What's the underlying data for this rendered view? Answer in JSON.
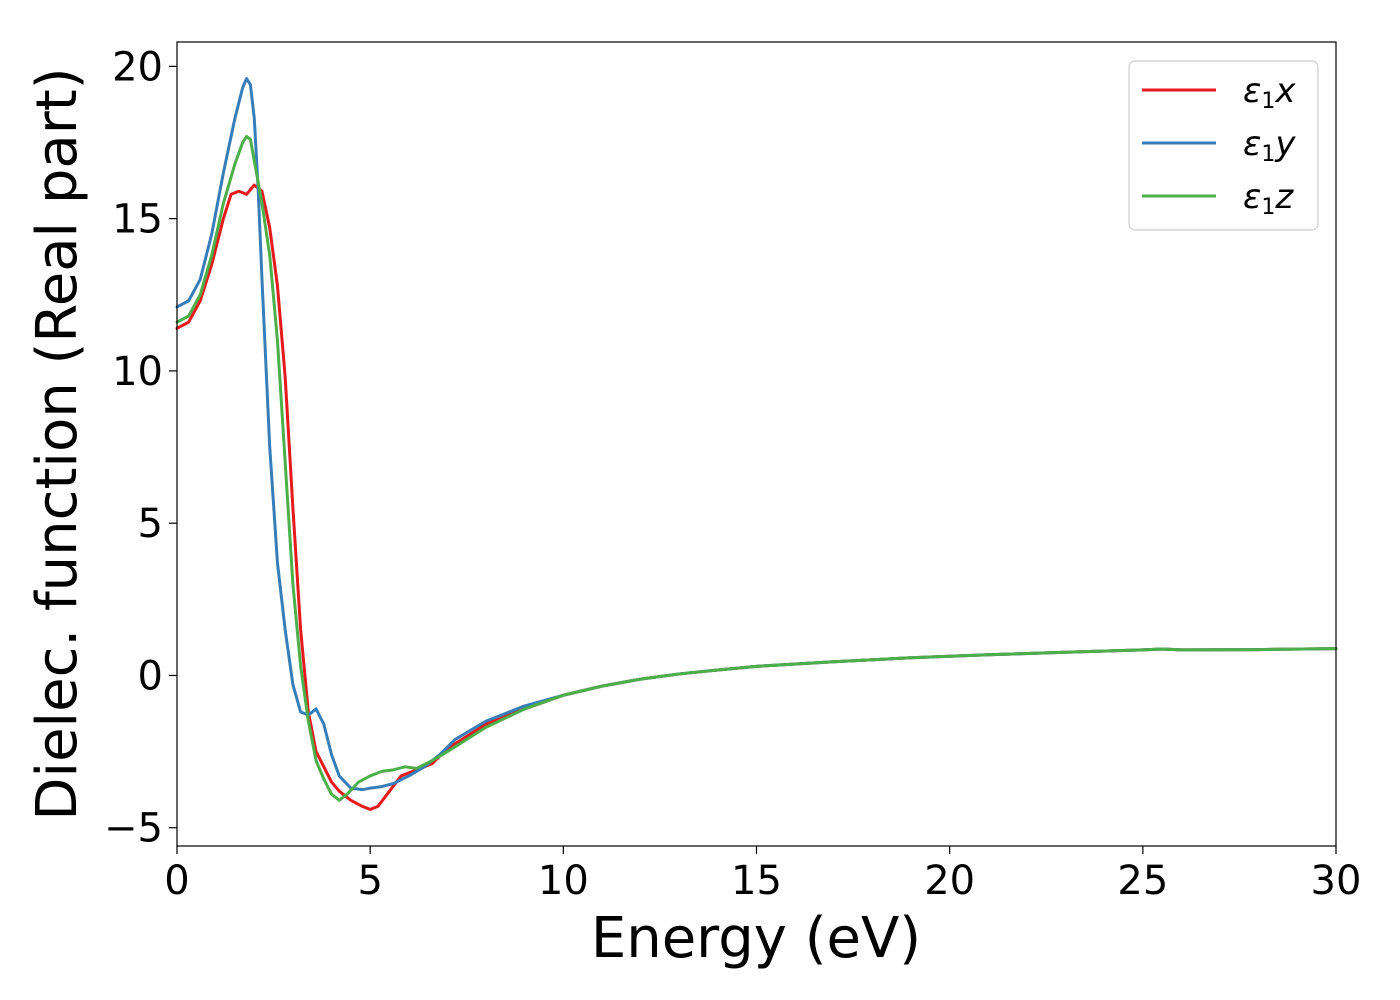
{
  "chart_data": {
    "type": "line",
    "title": "",
    "xlabel": "Energy (eV)",
    "ylabel": "Dielec. function (Real part)",
    "xlim": [
      0,
      30
    ],
    "ylim": [
      -5.6,
      20.8
    ],
    "xticks": [
      0,
      5,
      10,
      15,
      20,
      25,
      30
    ],
    "xtick_labels": [
      "0",
      "5",
      "10",
      "15",
      "20",
      "25",
      "30"
    ],
    "yticks": [
      -5,
      0,
      5,
      10,
      15,
      20
    ],
    "ytick_labels": [
      "−5",
      "0",
      "5",
      "10",
      "15",
      "20"
    ],
    "grid": false,
    "legend_position": "top-right",
    "series": [
      {
        "name": "ε1x",
        "legend_symbol": "ε",
        "legend_subscript": "1",
        "legend_suffix": "x",
        "color": "#e41a1c",
        "x": [
          0,
          0.3,
          0.6,
          0.9,
          1.2,
          1.4,
          1.6,
          1.8,
          2.0,
          2.2,
          2.4,
          2.6,
          2.8,
          3.0,
          3.2,
          3.4,
          3.6,
          3.8,
          4.0,
          4.2,
          4.5,
          4.8,
          5.0,
          5.2,
          5.5,
          5.8,
          6.2,
          6.6,
          7.0,
          7.5,
          8.0,
          9.0,
          10.0,
          11.0,
          12.0,
          13.0,
          14.0,
          15.0,
          17.0,
          19.0,
          21.0,
          23.0,
          25.0,
          25.5,
          26.0,
          28.0,
          30.0
        ],
        "y": [
          11.4,
          11.6,
          12.3,
          13.5,
          15.0,
          15.8,
          15.9,
          15.8,
          16.1,
          15.9,
          14.7,
          12.8,
          9.8,
          5.5,
          1.5,
          -1.2,
          -2.5,
          -3.0,
          -3.5,
          -3.8,
          -4.1,
          -4.3,
          -4.4,
          -4.3,
          -3.8,
          -3.3,
          -3.1,
          -2.9,
          -2.4,
          -2.0,
          -1.6,
          -1.1,
          -0.65,
          -0.35,
          -0.12,
          0.05,
          0.18,
          0.3,
          0.45,
          0.58,
          0.68,
          0.76,
          0.84,
          0.87,
          0.84,
          0.85,
          0.88
        ]
      },
      {
        "name": "ε1y",
        "legend_symbol": "ε",
        "legend_subscript": "1",
        "legend_suffix": "y",
        "color": "#377eb8",
        "x": [
          0,
          0.3,
          0.6,
          0.9,
          1.2,
          1.5,
          1.7,
          1.8,
          1.9,
          2.0,
          2.1,
          2.2,
          2.4,
          2.6,
          2.8,
          3.0,
          3.2,
          3.4,
          3.6,
          3.8,
          4.0,
          4.2,
          4.5,
          4.8,
          5.0,
          5.3,
          5.6,
          6.0,
          6.4,
          6.8,
          7.2,
          7.6,
          8.0,
          9.0,
          10.0,
          11.0,
          12.0,
          13.0,
          14.0,
          15.0,
          17.0,
          19.0,
          21.0,
          23.0,
          25.0,
          25.5,
          26.0,
          28.0,
          30.0
        ],
        "y": [
          12.1,
          12.3,
          13.0,
          14.5,
          16.5,
          18.3,
          19.3,
          19.6,
          19.4,
          18.3,
          16.0,
          13.0,
          7.5,
          3.7,
          1.5,
          -0.3,
          -1.2,
          -1.3,
          -1.1,
          -1.6,
          -2.6,
          -3.3,
          -3.7,
          -3.75,
          -3.7,
          -3.65,
          -3.55,
          -3.3,
          -3.0,
          -2.6,
          -2.1,
          -1.8,
          -1.5,
          -1.0,
          -0.65,
          -0.35,
          -0.12,
          0.05,
          0.18,
          0.3,
          0.45,
          0.58,
          0.68,
          0.76,
          0.84,
          0.87,
          0.84,
          0.85,
          0.88
        ]
      },
      {
        "name": "ε1z",
        "legend_symbol": "ε",
        "legend_subscript": "1",
        "legend_suffix": "z",
        "color": "#4daf4a",
        "x": [
          0,
          0.3,
          0.6,
          0.9,
          1.2,
          1.5,
          1.7,
          1.8,
          1.9,
          2.0,
          2.2,
          2.4,
          2.6,
          2.8,
          3.0,
          3.2,
          3.4,
          3.6,
          3.8,
          4.0,
          4.2,
          4.4,
          4.7,
          5.0,
          5.3,
          5.6,
          5.9,
          6.2,
          6.6,
          7.0,
          7.5,
          8.0,
          9.0,
          10.0,
          11.0,
          12.0,
          13.0,
          14.0,
          15.0,
          17.0,
          19.0,
          21.0,
          23.0,
          25.0,
          25.5,
          26.0,
          28.0,
          30.0
        ],
        "y": [
          11.6,
          11.8,
          12.5,
          13.8,
          15.5,
          16.8,
          17.5,
          17.7,
          17.6,
          16.9,
          15.5,
          13.8,
          11.0,
          7.0,
          3.0,
          0.3,
          -1.5,
          -2.8,
          -3.4,
          -3.9,
          -4.1,
          -3.9,
          -3.5,
          -3.3,
          -3.15,
          -3.1,
          -3.0,
          -3.05,
          -2.8,
          -2.5,
          -2.1,
          -1.7,
          -1.1,
          -0.65,
          -0.35,
          -0.12,
          0.05,
          0.18,
          0.3,
          0.45,
          0.58,
          0.68,
          0.76,
          0.84,
          0.87,
          0.84,
          0.85,
          0.88
        ]
      }
    ]
  }
}
